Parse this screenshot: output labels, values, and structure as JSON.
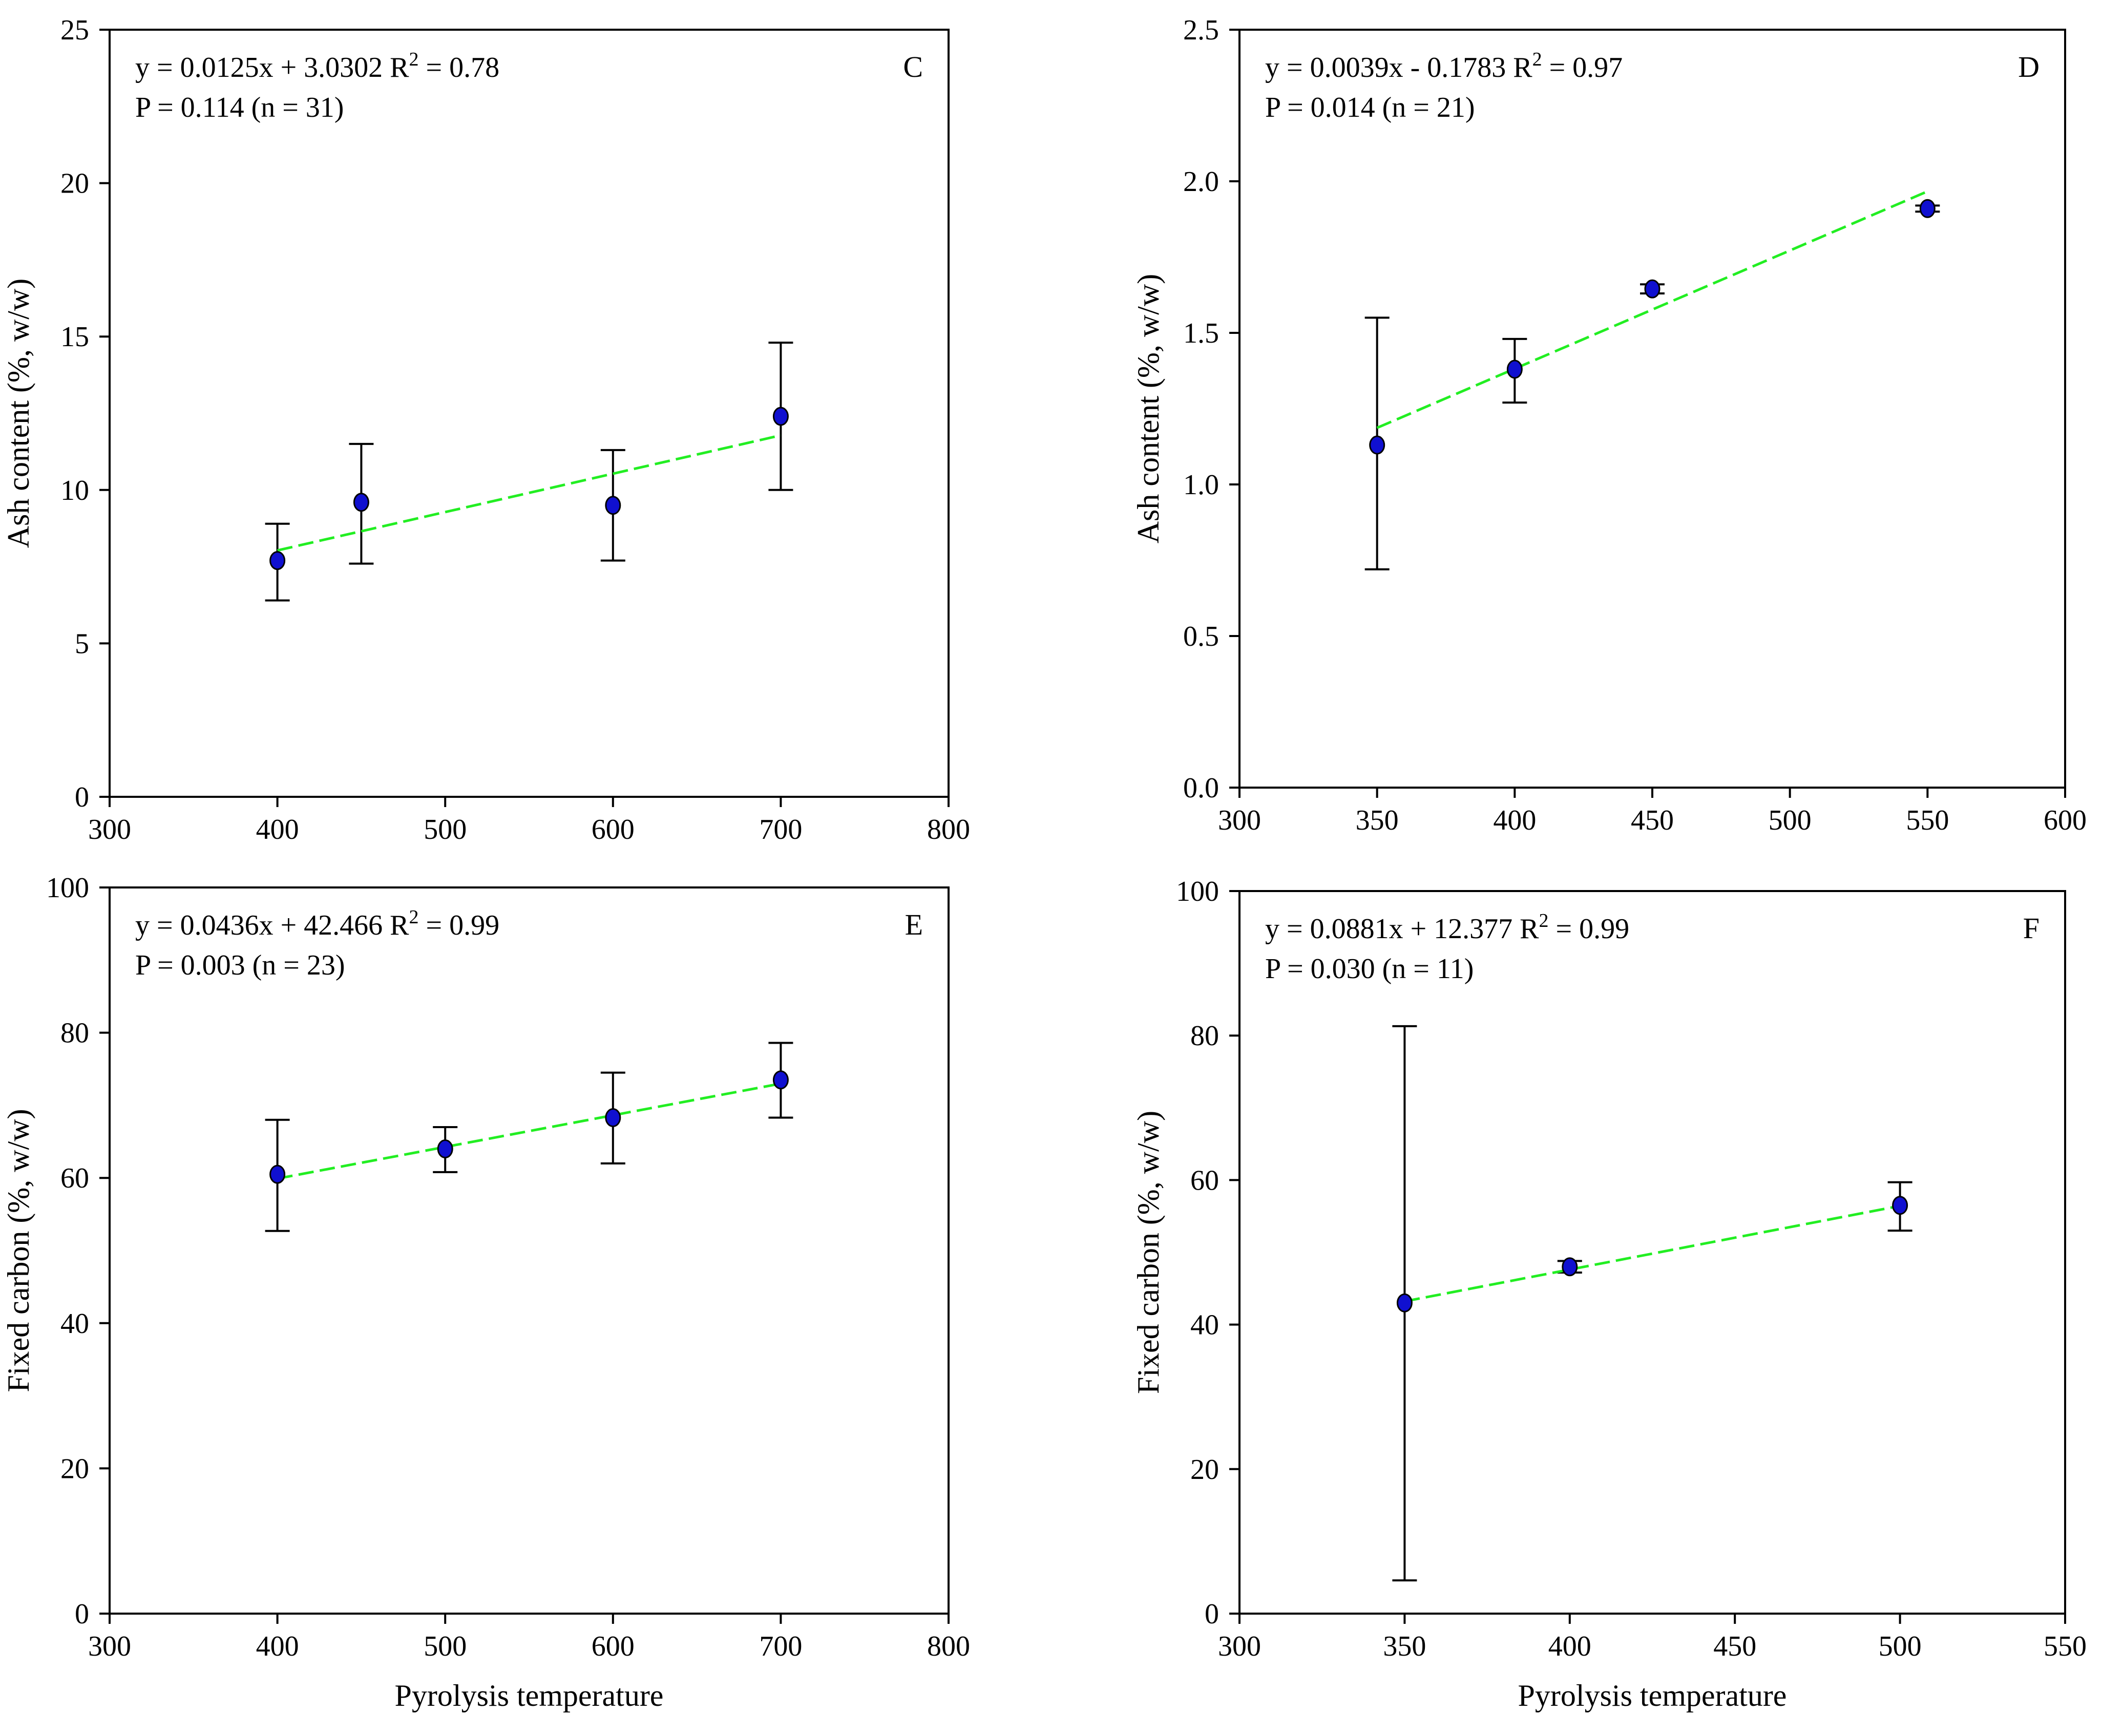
{
  "chart_data": [
    {
      "id": "C",
      "type": "scatter",
      "panel_label": "C",
      "equation": "y = 0.0125x + 3.0302 R",
      "r2_sup": "2",
      "r2_value": " = 0.78",
      "stats": "P = 0.114 (n = 31)",
      "xlabel": "",
      "ylabel": "Ash content (%, w/w)",
      "xlim": [
        300,
        800
      ],
      "ylim": [
        0,
        25
      ],
      "xticks": [
        300,
        400,
        500,
        600,
        700,
        800
      ],
      "yticks": [
        0,
        5,
        10,
        15,
        20,
        25
      ],
      "ytick_labels": [
        "0",
        "5",
        "10",
        "15",
        "20",
        "25"
      ],
      "points": [
        {
          "x": 400,
          "y": 7.7,
          "err_low": 6.4,
          "err_high": 8.9
        },
        {
          "x": 450,
          "y": 9.6,
          "err_low": 7.6,
          "err_high": 11.5
        },
        {
          "x": 600,
          "y": 9.5,
          "err_low": 7.7,
          "err_high": 11.3
        },
        {
          "x": 700,
          "y": 12.4,
          "err_low": 10.0,
          "err_high": 14.8
        }
      ],
      "fit": {
        "slope": 0.0125,
        "intercept": 3.0302,
        "x_range": [
          400,
          700
        ]
      },
      "colors": {
        "point": "#1010d0",
        "fit": "#22ee22"
      }
    },
    {
      "id": "D",
      "type": "scatter",
      "panel_label": "D",
      "equation": "y = 0.0039x - 0.1783 R",
      "r2_sup": "2",
      "r2_value": " = 0.97",
      "stats": "P = 0.014 (n = 21)",
      "xlabel": "",
      "ylabel": "Ash content (%, w/w)",
      "xlim": [
        300,
        600
      ],
      "ylim": [
        0,
        2.5
      ],
      "xticks": [
        300,
        350,
        400,
        450,
        500,
        550,
        600
      ],
      "yticks": [
        0,
        0.5,
        1.0,
        1.5,
        2.0,
        2.5
      ],
      "ytick_labels": [
        "0.0",
        "0.5",
        "1.0",
        "1.5",
        "2.0",
        "2.5"
      ],
      "points": [
        {
          "x": 350,
          "y": 1.13,
          "err_low": 0.72,
          "err_high": 1.55
        },
        {
          "x": 400,
          "y": 1.38,
          "err_low": 1.27,
          "err_high": 1.48
        },
        {
          "x": 450,
          "y": 1.645,
          "err_low": 1.63,
          "err_high": 1.66
        },
        {
          "x": 550,
          "y": 1.91,
          "err_low": 1.9,
          "err_high": 1.92
        }
      ],
      "fit": {
        "slope": 0.0039,
        "intercept": -0.1783,
        "x_range": [
          350,
          550
        ]
      },
      "colors": {
        "point": "#1010d0",
        "fit": "#22ee22"
      }
    },
    {
      "id": "E",
      "type": "scatter",
      "panel_label": "E",
      "equation": "y = 0.0436x + 42.466 R",
      "r2_sup": "2",
      "r2_value": " = 0.99",
      "stats": "P = 0.003 (n = 23)",
      "xlabel": "Pyrolysis temperature",
      "ylabel": "Fixed carbon (%, w/w)",
      "xlim": [
        300,
        800
      ],
      "ylim": [
        0,
        100
      ],
      "xticks": [
        300,
        400,
        500,
        600,
        700,
        800
      ],
      "yticks": [
        0,
        20,
        40,
        60,
        80,
        100
      ],
      "ytick_labels": [
        "0",
        "20",
        "40",
        "60",
        "80",
        "100"
      ],
      "points": [
        {
          "x": 400,
          "y": 60.5,
          "err_low": 52.7,
          "err_high": 68.0
        },
        {
          "x": 500,
          "y": 64.0,
          "err_low": 60.8,
          "err_high": 67.0
        },
        {
          "x": 600,
          "y": 68.3,
          "err_low": 62.0,
          "err_high": 74.5
        },
        {
          "x": 700,
          "y": 73.5,
          "err_low": 68.3,
          "err_high": 78.6
        }
      ],
      "fit": {
        "slope": 0.0436,
        "intercept": 42.466,
        "x_range": [
          400,
          700
        ]
      },
      "colors": {
        "point": "#1010d0",
        "fit": "#22ee22"
      }
    },
    {
      "id": "F",
      "type": "scatter",
      "panel_label": "F",
      "equation": "y = 0.0881x + 12.377 R",
      "r2_sup": "2",
      "r2_value": " = 0.99",
      "stats": "P = 0.030 (n = 11)",
      "xlabel": "Pyrolysis temperature",
      "ylabel": "Fixed carbon (%, w/w)",
      "xlim": [
        300,
        550
      ],
      "ylim": [
        0,
        100
      ],
      "xticks": [
        300,
        350,
        400,
        450,
        500,
        550
      ],
      "yticks": [
        0,
        20,
        40,
        60,
        80,
        100
      ],
      "ytick_labels": [
        "0",
        "20",
        "40",
        "60",
        "80",
        "100"
      ],
      "points": [
        {
          "x": 350,
          "y": 43.0,
          "err_low": 4.6,
          "err_high": 81.3
        },
        {
          "x": 400,
          "y": 48.0,
          "err_low": 47.2,
          "err_high": 48.8
        },
        {
          "x": 500,
          "y": 56.5,
          "err_low": 53.0,
          "err_high": 59.7
        }
      ],
      "fit": {
        "slope": 0.0881,
        "intercept": 12.377,
        "x_range": [
          350,
          500
        ]
      },
      "colors": {
        "point": "#1010d0",
        "fit": "#22ee22"
      }
    }
  ]
}
